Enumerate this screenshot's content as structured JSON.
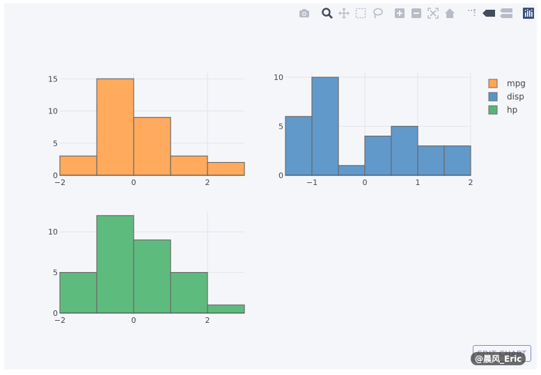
{
  "modebar": {
    "buttons": [
      {
        "name": "camera-icon"
      },
      {
        "name": "zoom-icon"
      },
      {
        "name": "pan-icon"
      },
      {
        "name": "box-select-icon"
      },
      {
        "name": "lasso-icon"
      },
      {
        "name": "zoom-in-icon"
      },
      {
        "name": "zoom-out-icon"
      },
      {
        "name": "autoscale-icon"
      },
      {
        "name": "home-icon"
      },
      {
        "name": "spike-lines-icon"
      },
      {
        "name": "hover-closest-icon"
      },
      {
        "name": "hover-compare-icon"
      },
      {
        "name": "plotly-logo-icon"
      }
    ]
  },
  "edit_button": {
    "label": "EDIT CHART"
  },
  "watermark": {
    "text": "@晨风_Eric"
  },
  "colors": {
    "mpg": "#ffa553",
    "disp": "#5994c8",
    "hp": "#55b777",
    "bar_line": "#6b6b6b",
    "grid": "#e2e4ea"
  },
  "chart_data": [
    {
      "type": "bar",
      "series": [
        {
          "name": "mpg",
          "values": [
            3,
            15,
            9,
            3,
            2
          ]
        }
      ],
      "bin_edges": [
        -2,
        -1,
        0,
        1,
        2,
        3
      ],
      "xlim": [
        -2,
        3
      ],
      "ylim": [
        0,
        16
      ],
      "xticks": [
        -2,
        0,
        2
      ],
      "yticks": [
        0,
        5,
        10,
        15
      ],
      "xticklabels": [
        "−2",
        "0",
        "2"
      ],
      "yticklabels": [
        "0",
        "5",
        "10",
        "15"
      ]
    },
    {
      "type": "bar",
      "series": [
        {
          "name": "disp",
          "values": [
            6,
            10,
            1,
            4,
            5,
            3,
            3
          ]
        }
      ],
      "bin_edges": [
        -1.5,
        -1,
        -0.5,
        0,
        0.5,
        1,
        1.5,
        2
      ],
      "xlim": [
        -1.5,
        2
      ],
      "ylim": [
        0,
        10.5
      ],
      "xticks": [
        -1,
        0,
        1,
        2
      ],
      "yticks": [
        0,
        5,
        10
      ],
      "xticklabels": [
        "−1",
        "0",
        "1",
        "2"
      ],
      "yticklabels": [
        "0",
        "5",
        "10"
      ]
    },
    {
      "type": "bar",
      "series": [
        {
          "name": "hp",
          "values": [
            5,
            12,
            9,
            5,
            1
          ]
        }
      ],
      "bin_edges": [
        -2,
        -1,
        0,
        1,
        2,
        3
      ],
      "xlim": [
        -2,
        3
      ],
      "ylim": [
        0,
        12.5
      ],
      "xticks": [
        -2,
        0,
        2
      ],
      "yticks": [
        0,
        5,
        10
      ],
      "xticklabels": [
        "−2",
        "0",
        "2"
      ],
      "yticklabels": [
        "0",
        "5",
        "10"
      ]
    }
  ],
  "legend": {
    "position": "top-right",
    "items": [
      {
        "label": "mpg",
        "color": "#ffa553"
      },
      {
        "label": "disp",
        "color": "#5994c8"
      },
      {
        "label": "hp",
        "color": "#55b777"
      }
    ]
  }
}
